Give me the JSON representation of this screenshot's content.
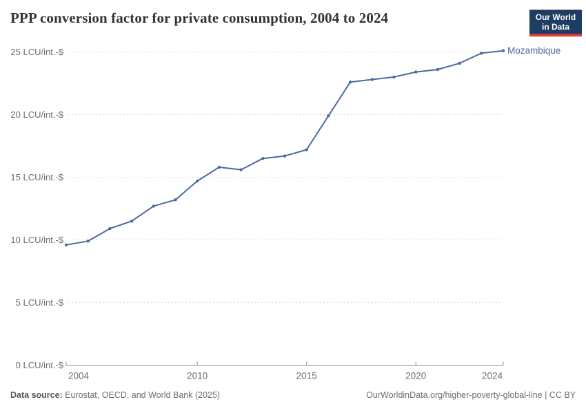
{
  "header": {
    "title": "PPP conversion factor for private consumption, 2004 to 2024",
    "logo": {
      "line1": "Our World",
      "line2": "in Data"
    }
  },
  "chart_data": {
    "type": "line",
    "title": "PPP conversion factor for private consumption, 2004 to 2024",
    "x": [
      2004,
      2005,
      2006,
      2007,
      2008,
      2009,
      2010,
      2011,
      2012,
      2013,
      2014,
      2015,
      2016,
      2017,
      2018,
      2019,
      2020,
      2021,
      2022,
      2023,
      2024
    ],
    "series": [
      {
        "name": "Mozambique",
        "color": "#4c6a9c",
        "values": [
          9.6,
          9.9,
          10.9,
          11.5,
          12.7,
          13.2,
          14.7,
          15.8,
          15.6,
          16.5,
          16.7,
          17.2,
          19.9,
          22.6,
          22.8,
          23.0,
          23.4,
          23.6,
          24.1,
          24.9,
          25.1
        ]
      }
    ],
    "xlabel": "",
    "ylabel": "",
    "y_unit": "LCU/int.-$",
    "xlim": [
      2004,
      2024
    ],
    "ylim": [
      0,
      25
    ],
    "yticks": [
      0,
      5,
      10,
      15,
      20,
      25
    ],
    "xticks": [
      2004,
      2010,
      2015,
      2020,
      2024
    ],
    "grid": "horizontal-dashed",
    "legend_position": "end-of-line",
    "colors": {
      "gridline": "#dcdcdc",
      "axis": "#8f8f8f",
      "tick_label": "#6e6e6e"
    }
  },
  "footer": {
    "source_label": "Data source:",
    "source_text": " Eurostat, OECD, and World Bank (2025)",
    "right_text": "OurWorldinData.org/higher-poverty-global-line | CC BY"
  }
}
